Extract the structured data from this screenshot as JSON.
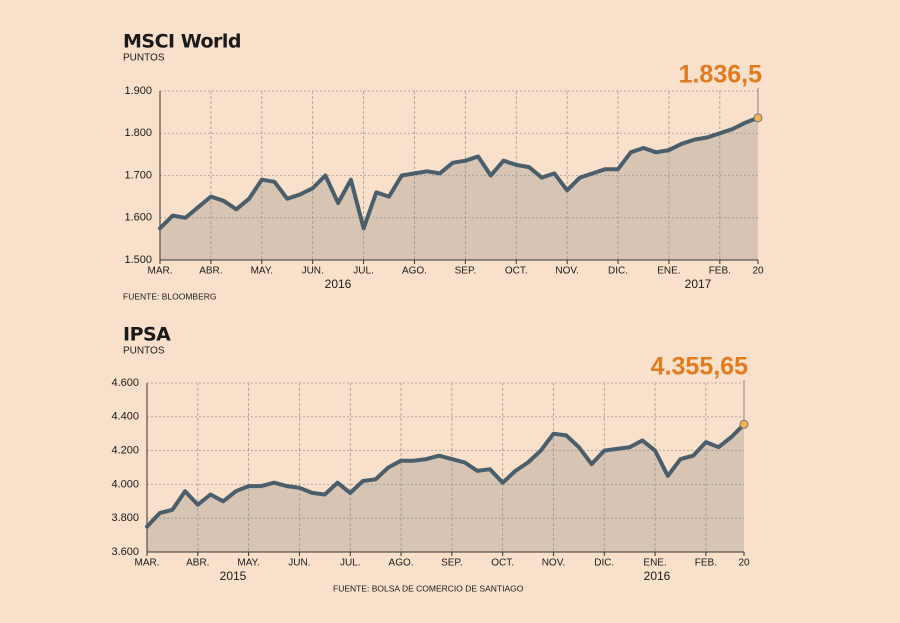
{
  "chart_data": [
    {
      "type": "line",
      "title": "MSCI World",
      "subtitle": "PUNTOS",
      "categories": [
        "MAR.",
        null,
        null,
        null,
        "ABR.",
        null,
        null,
        null,
        "MAY.",
        null,
        null,
        null,
        "JUN.",
        null,
        null,
        null,
        "JUL.",
        null,
        null,
        null,
        "AGO.",
        null,
        null,
        null,
        "SEP.",
        null,
        null,
        null,
        "OCT.",
        null,
        null,
        null,
        "NOV.",
        null,
        null,
        null,
        "DIC.",
        null,
        null,
        null,
        "ENE.",
        null,
        null,
        null,
        "FEB.",
        null,
        null,
        "20"
      ],
      "values": [
        1575,
        1605,
        1600,
        1625,
        1650,
        1640,
        1620,
        1645,
        1690,
        1685,
        1645,
        1655,
        1670,
        1700,
        1635,
        1690,
        1575,
        1660,
        1650,
        1700,
        1705,
        1710,
        1705,
        1730,
        1735,
        1745,
        1700,
        1735,
        1725,
        1720,
        1695,
        1705,
        1665,
        1695,
        1705,
        1715,
        1715,
        1755,
        1765,
        1755,
        1760,
        1775,
        1785,
        1790,
        1800,
        1810,
        1825,
        1836.5
      ],
      "value_labels": [
        null,
        null,
        null,
        null,
        null,
        null,
        null,
        null,
        null,
        null,
        null,
        null,
        null,
        null,
        null,
        null,
        null,
        null,
        null,
        null,
        null,
        null,
        null,
        null,
        null,
        null,
        null,
        null,
        null,
        null,
        null,
        null,
        null,
        null,
        null,
        null,
        null,
        null,
        null,
        null,
        null,
        null,
        null,
        null,
        null,
        null,
        null,
        "1.836,5"
      ],
      "color": "#4a5e6c",
      "fill": "#d8c4b3",
      "label_color": "#e07b20",
      "ylim": [
        1500,
        1900
      ],
      "yticks": [
        {
          "value": 1500,
          "label": "1.500"
        },
        {
          "value": 1600,
          "label": "1.600"
        },
        {
          "value": 1700,
          "label": "1.700"
        },
        {
          "value": 1800,
          "label": "1.800"
        },
        {
          "value": 1900,
          "label": "1.900"
        }
      ],
      "year_labels": [
        "2016",
        "2017"
      ],
      "source": "FUENTE: BLOOMBERG",
      "grid": true
    },
    {
      "type": "line",
      "title": "IPSA",
      "subtitle": "PUNTOS",
      "categories": [
        "MAR.",
        null,
        null,
        null,
        "ABR.",
        null,
        null,
        null,
        "MAY.",
        null,
        null,
        null,
        "JUN.",
        null,
        null,
        null,
        "JUL.",
        null,
        null,
        null,
        "AGO.",
        null,
        null,
        null,
        "SEP.",
        null,
        null,
        null,
        "OCT.",
        null,
        null,
        null,
        "NOV.",
        null,
        null,
        null,
        "DIC.",
        null,
        null,
        null,
        "ENE.",
        null,
        null,
        null,
        "FEB.",
        null,
        null,
        "20"
      ],
      "values": [
        3750,
        3830,
        3850,
        3960,
        3880,
        3940,
        3900,
        3960,
        3990,
        3990,
        4010,
        3990,
        3980,
        3950,
        3940,
        4010,
        3950,
        4020,
        4030,
        4100,
        4140,
        4140,
        4150,
        4170,
        4150,
        4130,
        4080,
        4090,
        4010,
        4080,
        4130,
        4200,
        4300,
        4290,
        4220,
        4120,
        4200,
        4210,
        4220,
        4260,
        4200,
        4050,
        4150,
        4170,
        4250,
        4220,
        4280,
        4355.65
      ],
      "value_labels": [
        null,
        null,
        null,
        null,
        null,
        null,
        null,
        null,
        null,
        null,
        null,
        null,
        null,
        null,
        null,
        null,
        null,
        null,
        null,
        null,
        null,
        null,
        null,
        null,
        null,
        null,
        null,
        null,
        null,
        null,
        null,
        null,
        null,
        null,
        null,
        null,
        null,
        null,
        null,
        null,
        null,
        null,
        null,
        null,
        null,
        null,
        null,
        "4.355,65"
      ],
      "color": "#4a5e6c",
      "fill": "#d8c4b3",
      "label_color": "#e07b20",
      "ylim": [
        3600,
        4600
      ],
      "yticks": [
        {
          "value": 3600,
          "label": "3.600"
        },
        {
          "value": 3800,
          "label": "3.800"
        },
        {
          "value": 4000,
          "label": "4.000"
        },
        {
          "value": 4200,
          "label": "4.200"
        },
        {
          "value": 4400,
          "label": "4.400"
        },
        {
          "value": 4600,
          "label": "4.600"
        }
      ],
      "year_labels": [
        "2015",
        "2016"
      ],
      "source": "FUENTE: BOLSA DE COMERCIO DE SANTIAGO",
      "grid": true
    }
  ]
}
